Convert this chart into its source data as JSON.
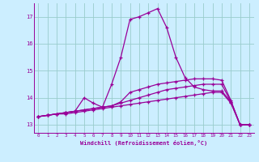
{
  "title": "",
  "xlabel": "Windchill (Refroidissement éolien,°C)",
  "ylabel": "",
  "bg_color": "#cceeff",
  "grid_color": "#99cccc",
  "line_color": "#990099",
  "xlim": [
    -0.5,
    23.5
  ],
  "ylim": [
    12.7,
    17.5
  ],
  "xticks": [
    0,
    1,
    2,
    3,
    4,
    5,
    6,
    7,
    8,
    9,
    10,
    11,
    12,
    13,
    14,
    15,
    16,
    17,
    18,
    19,
    20,
    21,
    22,
    23
  ],
  "yticks": [
    13,
    14,
    15,
    16,
    17
  ],
  "series": [
    [
      13.3,
      13.35,
      13.4,
      13.4,
      13.45,
      13.5,
      13.55,
      13.6,
      13.65,
      13.7,
      13.75,
      13.8,
      13.85,
      13.9,
      13.95,
      14.0,
      14.05,
      14.1,
      14.15,
      14.2,
      14.2,
      13.8,
      13.0,
      13.0
    ],
    [
      13.3,
      13.35,
      13.4,
      13.45,
      13.5,
      13.55,
      13.6,
      13.65,
      13.7,
      13.8,
      13.9,
      14.0,
      14.1,
      14.2,
      14.3,
      14.35,
      14.4,
      14.45,
      14.5,
      14.5,
      14.5,
      13.85,
      13.0,
      13.0
    ],
    [
      13.3,
      13.35,
      13.4,
      13.45,
      13.5,
      13.55,
      13.6,
      13.65,
      13.7,
      13.85,
      14.2,
      14.3,
      14.4,
      14.5,
      14.55,
      14.6,
      14.65,
      14.7,
      14.7,
      14.7,
      14.65,
      13.9,
      13.0,
      13.0
    ],
    [
      13.3,
      13.35,
      13.4,
      13.45,
      13.5,
      14.0,
      13.8,
      13.65,
      14.5,
      15.5,
      16.9,
      17.0,
      17.15,
      17.3,
      16.6,
      15.5,
      14.75,
      14.4,
      14.3,
      14.25,
      14.25,
      13.85,
      13.0,
      13.0
    ]
  ]
}
